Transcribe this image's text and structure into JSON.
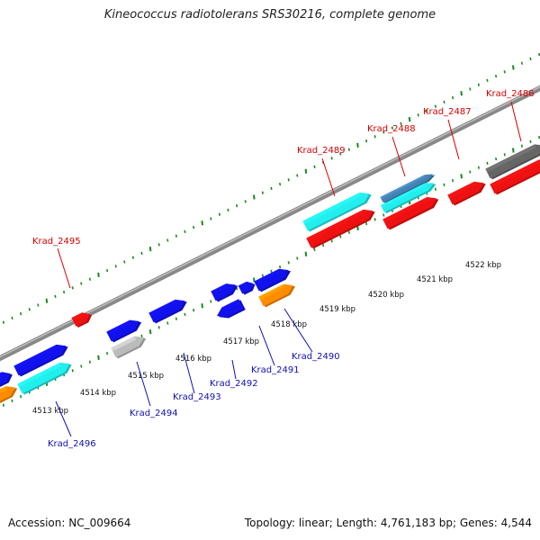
{
  "title": "Kineococcus radiotolerans SRS30216, complete genome",
  "footer": {
    "accession": "Accession: NC_009664",
    "summary": "Topology: linear; Length: 4,761,183 bp; Genes: 4,544"
  },
  "colors": {
    "red": "#ee1111",
    "blue": "#1111ee",
    "cyan": "#22eeee",
    "orange": "#ff8c00",
    "gray": "#bbbbbb",
    "steel": "#4682b4",
    "darkgray": "#666666",
    "backbone": "#888888",
    "tick": "#1a8a1a",
    "top_label": "#d40000",
    "bottom_label": "#1010b0"
  },
  "scale": {
    "unit": "kbp",
    "ticks": [
      "4513 kbp",
      "4514 kbp",
      "4515 kbp",
      "4516 kbp",
      "4517 kbp",
      "4518 kbp",
      "4519 kbp",
      "4520 kbp",
      "4521 kbp",
      "4522 kbp"
    ]
  },
  "top_labels": [
    "Krad_2495",
    "Krad_2489",
    "Krad_2488",
    "Krad_2487",
    "Krad_2486"
  ],
  "bottom_labels": [
    "Krad_2496",
    "Krad_2494",
    "Krad_2493",
    "Krad_2492",
    "Krad_2491",
    "Krad_2490"
  ]
}
